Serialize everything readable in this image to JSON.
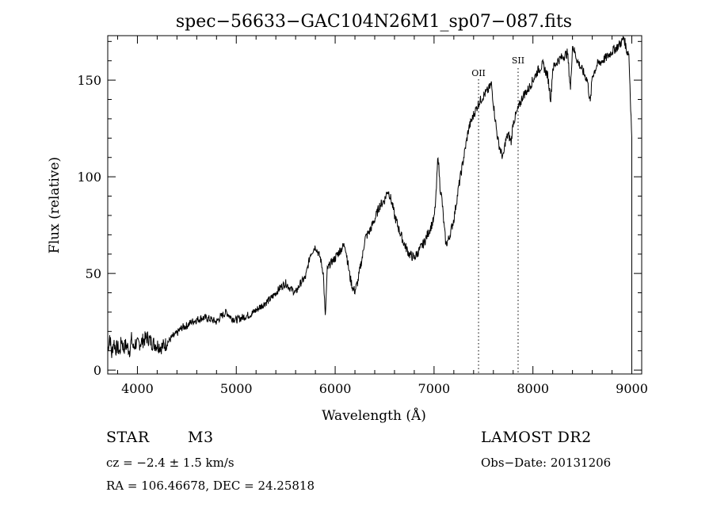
{
  "chart_data": {
    "type": "line",
    "title": "spec−56633−GAC104N26M1_sp07−087.fits",
    "xlabel": "Wavelength (Å)",
    "ylabel": "Flux (relative)",
    "xlim": [
      3700,
      9100
    ],
    "ylim": [
      -2,
      173
    ],
    "xticks": [
      4000,
      5000,
      6000,
      7000,
      8000,
      9000
    ],
    "xtick_labels": [
      "4000",
      "5000",
      "6000",
      "7000",
      "8000",
      "9000"
    ],
    "yticks": [
      0,
      50,
      100,
      150
    ],
    "ytick_labels": [
      "0",
      "50",
      "100",
      "150"
    ],
    "grid": false,
    "series": [
      {
        "color": "#000000",
        "x": [
          3700,
          3720,
          3740,
          3760,
          3780,
          3800,
          3820,
          3840,
          3860,
          3880,
          3900,
          3920,
          3940,
          3960,
          3980,
          4000,
          4050,
          4100,
          4150,
          4200,
          4250,
          4300,
          4350,
          4400,
          4450,
          4500,
          4550,
          4600,
          4650,
          4700,
          4750,
          4800,
          4850,
          4900,
          4950,
          5000,
          5050,
          5100,
          5150,
          5200,
          5250,
          5300,
          5350,
          5400,
          5450,
          5500,
          5550,
          5600,
          5650,
          5700,
          5750,
          5800,
          5850,
          5880,
          5900,
          5920,
          5950,
          6000,
          6050,
          6100,
          6150,
          6180,
          6200,
          6230,
          6250,
          6280,
          6300,
          6350,
          6400,
          6450,
          6500,
          6530,
          6550,
          6580,
          6600,
          6650,
          6700,
          6750,
          6800,
          6850,
          6900,
          6950,
          7000,
          7020,
          7040,
          7060,
          7080,
          7100,
          7120,
          7150,
          7200,
          7250,
          7300,
          7350,
          7400,
          7450,
          7500,
          7550,
          7580,
          7600,
          7630,
          7650,
          7680,
          7700,
          7720,
          7750,
          7780,
          7800,
          7850,
          7900,
          7950,
          8000,
          8050,
          8100,
          8150,
          8180,
          8200,
          8250,
          8300,
          8350,
          8380,
          8400,
          8450,
          8500,
          8550,
          8580,
          8600,
          8650,
          8700,
          8750,
          8800,
          8850,
          8900,
          8920,
          8950,
          8970,
          9000
        ],
        "y": [
          10,
          18,
          8,
          15,
          11,
          12,
          9,
          16,
          11,
          13,
          12,
          10,
          16,
          11,
          14,
          13,
          15,
          17,
          14,
          13,
          12,
          14,
          17,
          19,
          22,
          23,
          25,
          26,
          27,
          27,
          26,
          25,
          28,
          30,
          27,
          26,
          27,
          28,
          29,
          31,
          33,
          35,
          37,
          40,
          43,
          45,
          42,
          40,
          45,
          48,
          60,
          64,
          58,
          50,
          27,
          52,
          55,
          58,
          62,
          65,
          48,
          42,
          41,
          46,
          52,
          60,
          68,
          72,
          78,
          85,
          88,
          93,
          91,
          85,
          80,
          72,
          65,
          60,
          58,
          62,
          66,
          72,
          78,
          90,
          112,
          95,
          88,
          75,
          65,
          68,
          78,
          95,
          110,
          125,
          132,
          138,
          142,
          145,
          148,
          138,
          125,
          118,
          112,
          110,
          118,
          122,
          118,
          128,
          135,
          142,
          145,
          150,
          155,
          158,
          152,
          140,
          156,
          160,
          162,
          164,
          145,
          168,
          160,
          155,
          150,
          138,
          152,
          158,
          160,
          162,
          165,
          167,
          170,
          172,
          165,
          164,
          120
        ]
      }
    ],
    "annotations": [
      {
        "label": "OII",
        "x": 7450
      },
      {
        "label": "SII",
        "x": 7850
      }
    ]
  },
  "info": {
    "object_class": "STAR",
    "subclass": "M3",
    "survey": "LAMOST DR2",
    "redshift": "cz = −2.4 ± 1.5 km/s",
    "obs_date": "Obs−Date: 20131206",
    "coords": "RA = 106.46678, DEC =  24.25818"
  }
}
